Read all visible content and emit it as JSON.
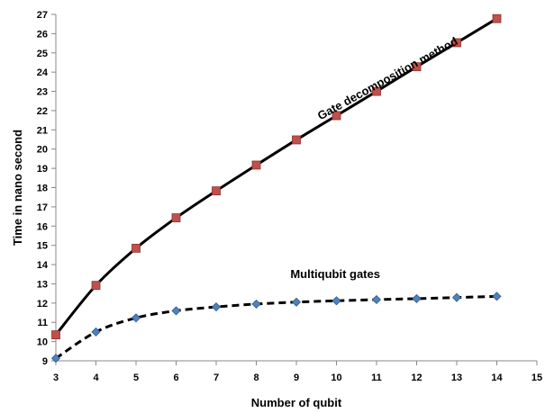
{
  "chart_data": {
    "type": "line",
    "xlabel": "Number of qubit",
    "ylabel": "Time in nano second",
    "xlim": [
      3,
      15
    ],
    "ylim": [
      9,
      27
    ],
    "x_ticks": [
      3,
      4,
      5,
      6,
      7,
      8,
      9,
      10,
      11,
      12,
      13,
      14,
      15
    ],
    "y_ticks": [
      9,
      10,
      11,
      12,
      13,
      14,
      15,
      16,
      17,
      18,
      19,
      20,
      21,
      22,
      23,
      24,
      25,
      26,
      27
    ],
    "grid": false,
    "legend": "none",
    "x": [
      3,
      4,
      5,
      6,
      7,
      8,
      9,
      10,
      11,
      12,
      13,
      14
    ],
    "series": [
      {
        "name": "Gate decomposition method",
        "line_style": "solid",
        "line_color": "#000000",
        "marker": "square",
        "marker_color": "#C0504D",
        "values": [
          10.35,
          12.92,
          14.85,
          16.43,
          17.83,
          19.17,
          20.48,
          21.74,
          23.0,
          24.28,
          25.53,
          26.78
        ]
      },
      {
        "name": "Multiqubit gates",
        "line_style": "dashed",
        "line_color": "#000000",
        "marker": "diamond",
        "marker_color": "#4F81BD",
        "values": [
          9.13,
          10.5,
          11.23,
          11.6,
          11.8,
          11.95,
          12.05,
          12.12,
          12.18,
          12.23,
          12.29,
          12.35
        ]
      }
    ],
    "annotations": [
      {
        "text": "Gate decomposition method",
        "series": 0
      },
      {
        "text": "Multiqubit gates",
        "series": 1
      }
    ]
  }
}
